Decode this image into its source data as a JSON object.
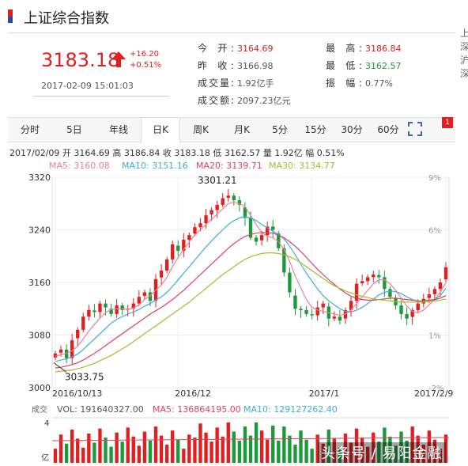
{
  "header": {
    "title": "上证综合指数"
  },
  "quote": {
    "price": "3183.18",
    "change": "+16.20",
    "change_pct": "+0.51%",
    "datetime": "2017-02-09 15:01:03"
  },
  "stats": {
    "open_label": "今  开:",
    "open": "3164.69",
    "prev_close_label": "昨  收:",
    "prev_close": "3166.98",
    "volume_label": "成交量:",
    "volume": "1.92亿手",
    "amount_label": "成交额:",
    "amount": "2097.23亿元",
    "high_label": "最  高:",
    "high": "3186.84",
    "low_label": "最  低:",
    "low": "3162.57",
    "amplitude_label": "振  幅:",
    "amplitude": "0.77%"
  },
  "tabs": [
    {
      "label": "分时"
    },
    {
      "label": "5日"
    },
    {
      "label": "年线"
    },
    {
      "label": "日K"
    },
    {
      "label": "周K"
    },
    {
      "label": "月K"
    },
    {
      "label": "5分"
    },
    {
      "label": "15分"
    },
    {
      "label": "30分"
    },
    {
      "label": "60分"
    }
  ],
  "active_tab": "日K",
  "badge": "1",
  "info_line": "2017/02/09  开 3164.69  高 3186.84  收 3183.18  低 3162.57  量 1.92亿  幅 0.51%",
  "ma": {
    "ma5": "MA5: 3160.08",
    "ma10": "MA10: 3151.16",
    "ma20": "MA20: 3139.71",
    "ma30": "MA30: 3134.77"
  },
  "volume_panel": {
    "label": "成交",
    "vol": "VOL: 191640327.00",
    "ma5": "MA5: 136864195.00",
    "ma10": "MA10: 129127262.40",
    "y_top": "4",
    "y_unit": "亿"
  },
  "watermark": "头条号 / 易阳金融",
  "edge_text": "上\n深\n沪\n深",
  "colors": {
    "up": "#e02020",
    "down": "#1a9a3a",
    "ma5": "#f08090",
    "ma10": "#3ab0d0",
    "ma20": "#e04060",
    "ma30": "#a0c030"
  },
  "chart_data": {
    "type": "candlestick",
    "ylim": [
      3000,
      3320
    ],
    "y_ticks": [
      "3320",
      "3240",
      "3160",
      "3080",
      "3000"
    ],
    "pct_ticks": [
      "9%",
      "6%",
      "",
      "1%",
      "-2%"
    ],
    "x_labels": [
      "2016/10/13",
      "2016/12",
      "2017/1",
      "2017/2/9"
    ],
    "high_label": "3301.21",
    "low_label": "3033.75",
    "closes": [
      3052,
      3058,
      3045,
      3072,
      3088,
      3108,
      3118,
      3115,
      3128,
      3122,
      3112,
      3125,
      3118,
      3120,
      3128,
      3138,
      3145,
      3132,
      3165,
      3178,
      3195,
      3218,
      3208,
      3225,
      3232,
      3244,
      3250,
      3262,
      3270,
      3278,
      3288,
      3292,
      3285,
      3278,
      3258,
      3228,
      3222,
      3232,
      3245,
      3240,
      3212,
      3175,
      3145,
      3120,
      3118,
      3112,
      3110,
      3122,
      3128,
      3105,
      3108,
      3102,
      3118,
      3132,
      3158,
      3162,
      3168,
      3172,
      3168,
      3150,
      3138,
      3125,
      3112,
      3105,
      3118,
      3128,
      3135,
      3142,
      3150,
      3160,
      3183
    ],
    "ma5": [
      3048,
      3050,
      3052,
      3056,
      3063,
      3074,
      3086,
      3096,
      3106,
      3114,
      3119,
      3120,
      3120,
      3119,
      3121,
      3126,
      3134,
      3140,
      3148,
      3156,
      3168,
      3184,
      3198,
      3210,
      3222,
      3232,
      3240,
      3248,
      3256,
      3264,
      3272,
      3280,
      3282,
      3280,
      3275,
      3262,
      3248,
      3236,
      3230,
      3228,
      3222,
      3210,
      3192,
      3170,
      3152,
      3134,
      3122,
      3118,
      3116,
      3114,
      3112,
      3110,
      3112,
      3118,
      3128,
      3138,
      3148,
      3158,
      3164,
      3164,
      3158,
      3148,
      3136,
      3124,
      3116,
      3114,
      3118,
      3126,
      3134,
      3145,
      3160
    ],
    "ma10": [
      3040,
      3042,
      3044,
      3047,
      3051,
      3058,
      3066,
      3074,
      3082,
      3090,
      3098,
      3104,
      3108,
      3112,
      3115,
      3119,
      3124,
      3128,
      3133,
      3138,
      3145,
      3154,
      3164,
      3174,
      3184,
      3194,
      3204,
      3214,
      3223,
      3232,
      3240,
      3248,
      3254,
      3258,
      3260,
      3258,
      3254,
      3248,
      3243,
      3238,
      3233,
      3226,
      3215,
      3202,
      3188,
      3174,
      3162,
      3150,
      3140,
      3132,
      3126,
      3120,
      3116,
      3115,
      3118,
      3122,
      3128,
      3135,
      3141,
      3145,
      3147,
      3146,
      3143,
      3138,
      3134,
      3131,
      3130,
      3131,
      3134,
      3140,
      3151
    ],
    "ma20": [
      3030,
      3031,
      3033,
      3035,
      3038,
      3042,
      3047,
      3052,
      3058,
      3064,
      3070,
      3076,
      3082,
      3088,
      3094,
      3100,
      3106,
      3112,
      3117,
      3122,
      3128,
      3134,
      3141,
      3148,
      3156,
      3164,
      3172,
      3180,
      3188,
      3196,
      3204,
      3212,
      3219,
      3225,
      3230,
      3233,
      3235,
      3236,
      3236,
      3235,
      3232,
      3228,
      3222,
      3215,
      3207,
      3198,
      3189,
      3180,
      3172,
      3164,
      3157,
      3150,
      3144,
      3139,
      3136,
      3134,
      3133,
      3133,
      3134,
      3135,
      3136,
      3136,
      3135,
      3134,
      3133,
      3132,
      3132,
      3133,
      3134,
      3136,
      3140
    ],
    "ma30": [
      3024,
      3025,
      3026,
      3027,
      3029,
      3031,
      3034,
      3037,
      3041,
      3045,
      3049,
      3054,
      3059,
      3064,
      3070,
      3076,
      3082,
      3088,
      3094,
      3100,
      3106,
      3112,
      3118,
      3124,
      3130,
      3137,
      3144,
      3151,
      3158,
      3165,
      3172,
      3178,
      3184,
      3190,
      3195,
      3199,
      3202,
      3204,
      3205,
      3205,
      3204,
      3202,
      3199,
      3195,
      3190,
      3184,
      3178,
      3172,
      3166,
      3160,
      3155,
      3151,
      3147,
      3144,
      3141,
      3139,
      3137,
      3135,
      3134,
      3133,
      3132,
      3131,
      3130,
      3130,
      3130,
      3130,
      3130,
      3131,
      3132,
      3133,
      3135
    ],
    "volume_ma5": 0.55,
    "volume_ma10": 0.52
  }
}
